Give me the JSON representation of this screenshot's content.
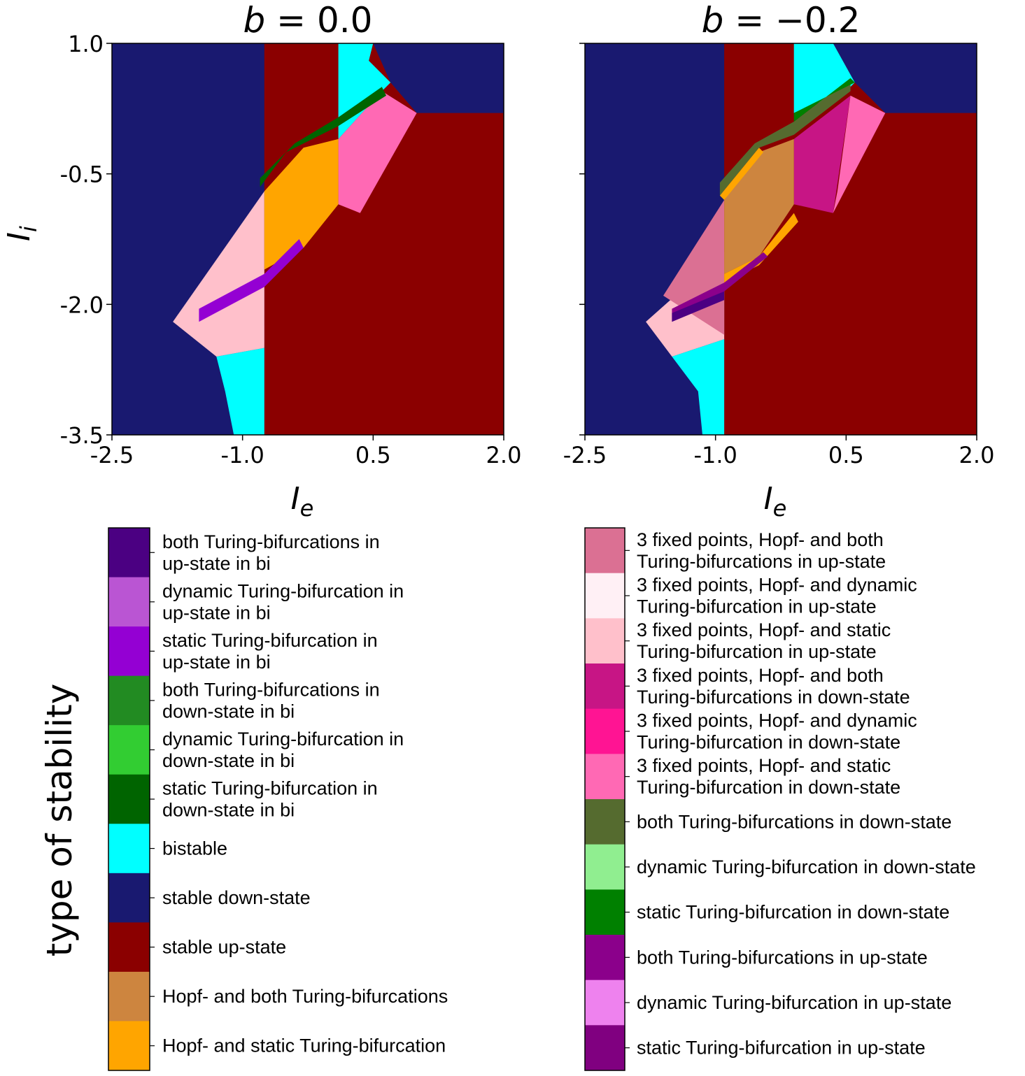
{
  "chart_data": {
    "type": "heatmap",
    "panels": [
      {
        "title_prefix": "b",
        "title": "b = 0.0",
        "title_value": "0.0",
        "xlabel_main": "I",
        "xlabel_sub": "e",
        "ylabel_main": "I",
        "ylabel_sub": "i",
        "xlim": [
          -2.5,
          2.0
        ],
        "ylim": [
          -3.5,
          1.0
        ],
        "xticks": [
          {
            "value": -2.5,
            "label": "-2.5"
          },
          {
            "value": -1.0,
            "label": "-1.0"
          },
          {
            "value": 0.5,
            "label": "0.5"
          },
          {
            "value": 2.0,
            "label": "2.0"
          }
        ],
        "yticks": [
          {
            "value": 1.0,
            "label": "1.0"
          },
          {
            "value": -0.5,
            "label": "-0.5"
          },
          {
            "value": -2.0,
            "label": "-2.0"
          },
          {
            "value": -3.5,
            "label": "-3.5"
          }
        ],
        "background": "stable down-state",
        "regions": [
          {
            "name": "stable up-state",
            "color": "#8b0000",
            "points": [
              [
                -0.75,
                1.0
              ],
              [
                0.5,
                1.0
              ],
              [
                0.7,
                0.55
              ],
              [
                1.0,
                0.2
              ],
              [
                2.0,
                0.2
              ],
              [
                2.0,
                -3.5
              ],
              [
                -0.75,
                -3.5
              ]
            ]
          },
          {
            "name": "bistable",
            "color": "#00ffff",
            "points": [
              [
                0.1,
                1.0
              ],
              [
                0.5,
                1.0
              ],
              [
                0.45,
                0.8
              ],
              [
                0.7,
                0.55
              ],
              [
                0.6,
                0.45
              ],
              [
                0.1,
                -0.1
              ]
            ]
          },
          {
            "name": "bistable",
            "color": "#00ffff",
            "points": [
              [
                -0.75,
                -2.5
              ],
              [
                -0.75,
                -3.5
              ],
              [
                -1.1,
                -3.5
              ],
              [
                -1.2,
                -3.0
              ],
              [
                -1.3,
                -2.6
              ]
            ]
          },
          {
            "name": "3 fixed points, Hopf- and static Turing-bifurcation in down-state",
            "color": "#ff69b4",
            "points": [
              [
                0.1,
                -0.1
              ],
              [
                0.6,
                0.45
              ],
              [
                1.0,
                0.2
              ],
              [
                0.35,
                -0.95
              ],
              [
                0.1,
                -0.85
              ]
            ]
          },
          {
            "name": "3 fixed points, Hopf- and static Turing-bifurcation in up-state",
            "color": "#ffc0cb",
            "points": [
              [
                -0.75,
                -0.7
              ],
              [
                -1.8,
                -2.2
              ],
              [
                -1.3,
                -2.6
              ],
              [
                -0.75,
                -2.5
              ]
            ]
          },
          {
            "name": "Hopf- and static Turing-bifurcation",
            "color": "#ffa500",
            "points": [
              [
                -0.75,
                -0.7
              ],
              [
                -0.3,
                -0.2
              ],
              [
                0.1,
                -0.1
              ],
              [
                0.1,
                -0.85
              ],
              [
                -0.3,
                -1.35
              ],
              [
                -0.75,
                -1.6
              ]
            ]
          },
          {
            "name": "static Turing-bifurcation in down-state in bi",
            "color": "#006400",
            "points": [
              [
                -0.8,
                -0.65
              ],
              [
                -0.5,
                -0.25
              ],
              [
                0.1,
                0.05
              ],
              [
                0.65,
                0.4
              ],
              [
                0.6,
                0.5
              ],
              [
                0.1,
                0.15
              ],
              [
                -0.4,
                -0.15
              ],
              [
                -0.8,
                -0.55
              ]
            ]
          },
          {
            "name": "static Turing-bifurcation in up-state in bi",
            "color": "#9400d3",
            "points": [
              [
                -1.5,
                -2.2
              ],
              [
                -0.75,
                -1.8
              ],
              [
                -0.3,
                -1.35
              ],
              [
                -0.35,
                -1.25
              ],
              [
                -0.75,
                -1.65
              ],
              [
                -1.5,
                -2.05
              ]
            ]
          }
        ]
      },
      {
        "title_prefix": "b",
        "title": "b = −0.2",
        "title_value": "−0.2",
        "xlabel_main": "I",
        "xlabel_sub": "e",
        "xlim": [
          -2.5,
          2.0
        ],
        "ylim": [
          -3.5,
          1.0
        ],
        "xticks": [
          {
            "value": -2.5,
            "label": "-2.5"
          },
          {
            "value": -1.0,
            "label": "-1.0"
          },
          {
            "value": 0.5,
            "label": "0.5"
          },
          {
            "value": 2.0,
            "label": "2.0"
          }
        ],
        "yticks": [
          {
            "value": 1.0,
            "label": ""
          },
          {
            "value": -0.5,
            "label": ""
          },
          {
            "value": -2.0,
            "label": ""
          },
          {
            "value": -3.5,
            "label": ""
          }
        ],
        "background": "stable down-state",
        "regions": [
          {
            "name": "stable up-state",
            "color": "#8b0000",
            "points": [
              [
                -0.9,
                1.0
              ],
              [
                0.35,
                1.0
              ],
              [
                0.6,
                0.55
              ],
              [
                0.95,
                0.2
              ],
              [
                2.0,
                0.2
              ],
              [
                2.0,
                -3.5
              ],
              [
                -0.9,
                -3.5
              ]
            ]
          },
          {
            "name": "bistable",
            "color": "#00ffff",
            "points": [
              [
                -0.1,
                1.0
              ],
              [
                0.35,
                1.0
              ],
              [
                0.6,
                0.55
              ],
              [
                0.5,
                0.45
              ],
              [
                -0.1,
                0.2
              ]
            ]
          },
          {
            "name": "bistable",
            "color": "#00ffff",
            "points": [
              [
                -0.9,
                -2.4
              ],
              [
                -0.9,
                -3.5
              ],
              [
                -1.15,
                -3.5
              ],
              [
                -1.2,
                -3.0
              ],
              [
                -1.5,
                -2.6
              ]
            ]
          },
          {
            "name": "3 fixed points, Hopf- and both Turing-bifurcations in down-state",
            "color": "#c71585",
            "points": [
              [
                -0.1,
                -0.1
              ],
              [
                0.55,
                0.4
              ],
              [
                0.35,
                -0.95
              ],
              [
                -0.1,
                -0.85
              ]
            ]
          },
          {
            "name": "3 fixed points, Hopf- and static Turing-bifurcation in down-state",
            "color": "#ff69b4",
            "points": [
              [
                0.55,
                0.4
              ],
              [
                0.95,
                0.2
              ],
              [
                0.35,
                -0.95
              ],
              [
                0.4,
                -0.7
              ]
            ]
          },
          {
            "name": "3 fixed points, Hopf- and static Turing-bifurcation in up-state",
            "color": "#ffc0cb",
            "points": [
              [
                -0.9,
                -1.4
              ],
              [
                -1.8,
                -2.2
              ],
              [
                -1.5,
                -2.6
              ],
              [
                -0.9,
                -2.4
              ]
            ]
          },
          {
            "name": "3 fixed points, Hopf- and both Turing-bifurcations in up-state",
            "color": "#db7093",
            "points": [
              [
                -0.9,
                -0.8
              ],
              [
                -1.6,
                -1.9
              ],
              [
                -0.9,
                -2.35
              ]
            ]
          },
          {
            "name": "Hopf- and both Turing-bifurcations",
            "color": "#cd853f",
            "points": [
              [
                -0.9,
                -0.8
              ],
              [
                -0.5,
                -0.25
              ],
              [
                -0.1,
                -0.1
              ],
              [
                -0.1,
                -0.85
              ],
              [
                -0.5,
                -1.45
              ],
              [
                -0.9,
                -1.65
              ]
            ]
          },
          {
            "name": "both Turing-bifurcations in down-state",
            "color": "#556b2f",
            "points": [
              [
                -0.95,
                -0.75
              ],
              [
                -0.5,
                -0.2
              ],
              [
                -0.1,
                -0.05
              ],
              [
                0.55,
                0.45
              ],
              [
                0.55,
                0.6
              ],
              [
                -0.1,
                0.1
              ],
              [
                -0.55,
                -0.15
              ],
              [
                -0.95,
                -0.6
              ]
            ]
          },
          {
            "name": "static Turing-bifurcation in down-state",
            "color": "#008000",
            "points": [
              [
                -0.1,
                0.1
              ],
              [
                0.55,
                0.6
              ],
              [
                0.6,
                0.55
              ],
              [
                -0.1,
                0.2
              ]
            ]
          },
          {
            "name": "Hopf- and static Turing-bifurcation",
            "color": "#ffa500",
            "points": [
              [
                -0.95,
                -0.75
              ],
              [
                -0.5,
                -0.2
              ],
              [
                -0.45,
                -0.25
              ],
              [
                -0.9,
                -0.8
              ]
            ]
          },
          {
            "name": "Hopf- and static Turing-bifurcation",
            "color": "#ffa500",
            "points": [
              [
                -0.9,
                -1.65
              ],
              [
                -0.5,
                -1.45
              ],
              [
                -0.1,
                -0.95
              ],
              [
                -0.05,
                -1.05
              ],
              [
                -0.5,
                -1.55
              ],
              [
                -0.9,
                -1.75
              ]
            ]
          },
          {
            "name": "both Turing-bifurcations in up-state",
            "color": "#8b008b",
            "points": [
              [
                -1.5,
                -2.2
              ],
              [
                -0.9,
                -1.85
              ],
              [
                -0.4,
                -1.45
              ],
              [
                -0.45,
                -1.4
              ],
              [
                -0.9,
                -1.75
              ],
              [
                -1.5,
                -2.05
              ]
            ]
          },
          {
            "name": "static Turing-bifurcation in up-state",
            "color": "#4b0082",
            "points": [
              [
                -1.5,
                -2.2
              ],
              [
                -0.9,
                -1.95
              ],
              [
                -0.9,
                -1.85
              ],
              [
                -1.5,
                -2.1
              ]
            ]
          }
        ]
      }
    ],
    "colorbars": [
      {
        "title": "type of stability",
        "entries": [
          {
            "label": [
              "both Turing-bifurcations in",
              "up-state in bi"
            ],
            "color": "#4b0082"
          },
          {
            "label": [
              "dynamic Turing-bifurcation in",
              "up-state in bi"
            ],
            "color": "#ba55d3"
          },
          {
            "label": [
              "static Turing-bifurcation in",
              "up-state in bi"
            ],
            "color": "#9400d3"
          },
          {
            "label": [
              "both Turing-bifurcations in",
              "down-state in bi"
            ],
            "color": "#228b22"
          },
          {
            "label": [
              "dynamic Turing-bifurcation in",
              "down-state in bi"
            ],
            "color": "#32cd32"
          },
          {
            "label": [
              "static Turing-bifurcation in",
              "down-state in bi"
            ],
            "color": "#006400"
          },
          {
            "label": [
              "bistable"
            ],
            "color": "#00ffff"
          },
          {
            "label": [
              "stable down-state"
            ],
            "color": "#191970"
          },
          {
            "label": [
              "stable up-state"
            ],
            "color": "#8b0000"
          },
          {
            "label": [
              "Hopf- and both Turing-bifurcations"
            ],
            "color": "#cd853f"
          },
          {
            "label": [
              "Hopf- and static Turing-bifurcation"
            ],
            "color": "#ffa500"
          }
        ]
      },
      {
        "title": "",
        "entries": [
          {
            "label": [
              "3 fixed points, Hopf- and both",
              "Turing-bifurcations in up-state"
            ],
            "color": "#db7093"
          },
          {
            "label": [
              "3 fixed points, Hopf- and dynamic",
              "Turing-bifurcation in up-state"
            ],
            "color": "#fff0f5"
          },
          {
            "label": [
              "3 fixed points, Hopf- and static",
              "Turing-bifurcation in up-state"
            ],
            "color": "#ffc0cb"
          },
          {
            "label": [
              "3 fixed points, Hopf- and both",
              "Turing-bifurcations in down-state"
            ],
            "color": "#c71585"
          },
          {
            "label": [
              "3 fixed points, Hopf- and dynamic",
              "Turing-bifurcation in down-state"
            ],
            "color": "#ff1493"
          },
          {
            "label": [
              "3 fixed points, Hopf- and static",
              "Turing-bifurcation in down-state"
            ],
            "color": "#ff69b4"
          },
          {
            "label": [
              "both Turing-bifurcations in down-state"
            ],
            "color": "#556b2f"
          },
          {
            "label": [
              "dynamic Turing-bifurcation in down-state"
            ],
            "color": "#90ee90"
          },
          {
            "label": [
              "static Turing-bifurcation in down-state"
            ],
            "color": "#008000"
          },
          {
            "label": [
              "both Turing-bifurcations in up-state"
            ],
            "color": "#8b008b"
          },
          {
            "label": [
              "dynamic Turing-bifurcation in up-state"
            ],
            "color": "#ee82ee"
          },
          {
            "label": [
              "static Turing-bifurcation in up-state"
            ],
            "color": "#800080"
          }
        ]
      }
    ],
    "background_color": "#191970"
  }
}
